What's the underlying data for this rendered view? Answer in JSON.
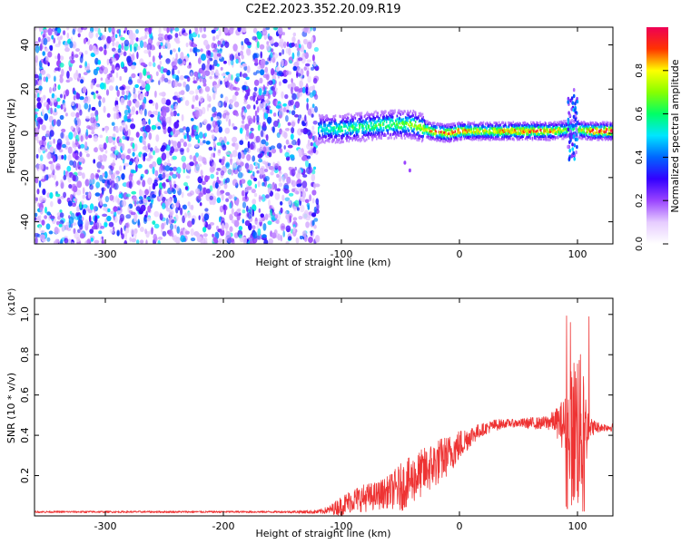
{
  "title": "C2E2.2023.352.20.09.R19",
  "colors": {
    "snr_line": "#ee3333",
    "scatter_base": "#7a22e6",
    "colormap": [
      "#ffffff",
      "#e6ccff",
      "#9a44ff",
      "#3300ff",
      "#0066ff",
      "#00e6ff",
      "#00ff66",
      "#88ff00",
      "#ffff00",
      "#ff3300",
      "#ee0055"
    ]
  },
  "chart_data": [
    {
      "type": "heatmap",
      "title": "C2E2.2023.352.20.09.R19",
      "xlabel": "Height of straight line (km)",
      "ylabel": "Frequency (Hz)",
      "xlim": [
        -360,
        130
      ],
      "ylim": [
        -50,
        48
      ],
      "x_ticks": [
        -300,
        -200,
        -100,
        0,
        100
      ],
      "y_ticks": [
        -40,
        -20,
        0,
        20,
        40
      ],
      "x_tick_labels": [
        "-300",
        "-200",
        "-100",
        "0",
        "100"
      ],
      "y_tick_labels": [
        "-40",
        "-20",
        "0",
        "20",
        "40"
      ],
      "colorbar": {
        "label": "Normalized spectral amplitude",
        "range": [
          0,
          1
        ],
        "ticks": [
          0.0,
          0.2,
          0.4,
          0.6,
          0.8
        ],
        "tick_labels": [
          "0.0",
          "0.2",
          "0.4",
          "0.6",
          "0.8"
        ]
      },
      "regions": [
        {
          "x_range": [
            -360,
            -120
          ],
          "y_range": [
            -50,
            48
          ],
          "amplitude": 0.25,
          "description": "broadband noise"
        },
        {
          "x_range": [
            -120,
            130
          ],
          "y_center": 1,
          "y_halfwidth_hz": 4,
          "amplitude": 0.6,
          "description": "signal band"
        }
      ],
      "ridge": [
        {
          "x": -120,
          "y": 2,
          "amp": 0.45
        },
        {
          "x": -100,
          "y": 2,
          "amp": 0.55
        },
        {
          "x": -80,
          "y": 3,
          "amp": 0.55
        },
        {
          "x": -60,
          "y": 4,
          "amp": 0.6
        },
        {
          "x": -40,
          "y": 4,
          "amp": 0.65
        },
        {
          "x": -25,
          "y": 1,
          "amp": 0.8
        },
        {
          "x": -10,
          "y": 0,
          "amp": 0.95
        },
        {
          "x": 0,
          "y": 1,
          "amp": 0.9
        },
        {
          "x": 20,
          "y": 1,
          "amp": 0.75
        },
        {
          "x": 40,
          "y": 1,
          "amp": 0.85
        },
        {
          "x": 60,
          "y": 1,
          "amp": 0.9
        },
        {
          "x": 80,
          "y": 1,
          "amp": 0.85
        },
        {
          "x": 95,
          "y": 2,
          "amp": 0.5
        },
        {
          "x": 110,
          "y": 1,
          "amp": 0.95
        },
        {
          "x": 130,
          "y": 1,
          "amp": 1.0
        }
      ],
      "features": [
        {
          "x": 95,
          "y_range": [
            -12,
            20
          ],
          "description": "vertical spread"
        }
      ]
    },
    {
      "type": "line",
      "xlabel": "Height of straight line (km)",
      "ylabel": "SNR (10 * v/v)",
      "y_multiplier_label": "(x10⁴)",
      "xlim": [
        -360,
        130
      ],
      "ylim": [
        0,
        1.08
      ],
      "x_ticks": [
        -300,
        -200,
        -100,
        0,
        100
      ],
      "y_ticks": [
        0.2,
        0.4,
        0.6,
        0.8,
        1.0
      ],
      "x_tick_labels": [
        "-300",
        "-200",
        "-100",
        "0",
        "100"
      ],
      "y_tick_labels": [
        "0.2",
        "0.4",
        "0.6",
        "0.8",
        "1.0"
      ],
      "series": [
        {
          "x": [
            -360,
            -300,
            -250,
            -200,
            -150,
            -120,
            -110,
            -100,
            -90,
            -80,
            -70,
            -60,
            -50,
            -40,
            -30,
            -20,
            -10,
            0,
            10,
            20,
            30,
            40,
            50,
            60,
            70,
            80,
            90,
            95,
            100,
            105,
            110,
            120,
            130
          ],
          "y": [
            0.02,
            0.02,
            0.02,
            0.02,
            0.02,
            0.02,
            0.03,
            0.05,
            0.08,
            0.09,
            0.1,
            0.12,
            0.14,
            0.18,
            0.22,
            0.26,
            0.3,
            0.35,
            0.4,
            0.43,
            0.45,
            0.46,
            0.46,
            0.46,
            0.46,
            0.47,
            0.45,
            0.4,
            0.45,
            0.42,
            0.44,
            0.44,
            0.44
          ],
          "noise_amplitude": [
            0.005,
            0.005,
            0.005,
            0.005,
            0.005,
            0.01,
            0.02,
            0.05,
            0.06,
            0.07,
            0.07,
            0.08,
            0.12,
            0.12,
            0.12,
            0.12,
            0.1,
            0.08,
            0.05,
            0.03,
            0.03,
            0.02,
            0.02,
            0.03,
            0.03,
            0.05,
            0.15,
            0.35,
            0.45,
            0.3,
            0.05,
            0.02,
            0.02
          ]
        }
      ]
    }
  ]
}
